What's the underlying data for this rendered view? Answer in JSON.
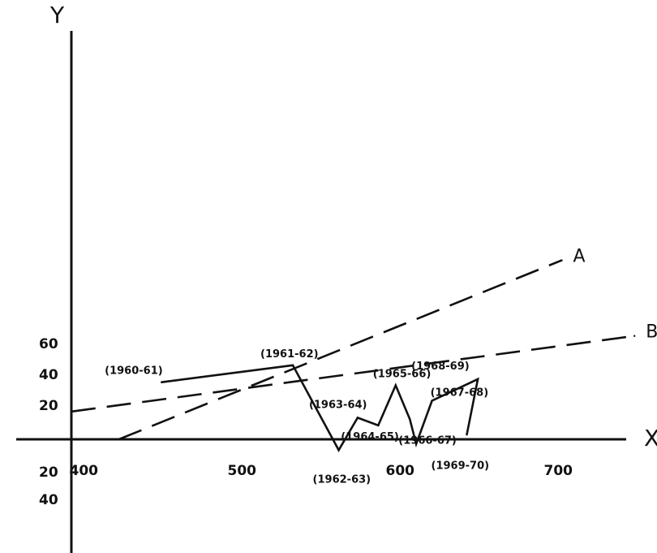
{
  "chart_data": {
    "type": "line",
    "title": "",
    "xlabel": "X",
    "ylabel": "Y",
    "xlim": [
      390,
      740
    ],
    "ylim": [
      -40,
      60
    ],
    "x_ticks": [
      {
        "value": 400,
        "label": "400"
      },
      {
        "value": 500,
        "label": "500"
      },
      {
        "value": 600,
        "label": "600"
      },
      {
        "value": 700,
        "label": "700"
      }
    ],
    "y_ticks": [
      {
        "value": 60,
        "label": "60"
      },
      {
        "value": 40,
        "label": "40"
      },
      {
        "value": 20,
        "label": "20"
      },
      {
        "value": -20,
        "label": "20"
      },
      {
        "value": -40,
        "label": "40"
      }
    ],
    "series": [
      {
        "name": "A",
        "style": "dashed",
        "points": [
          [
            420,
            0
          ],
          [
            700,
            116
          ]
        ]
      },
      {
        "name": "B",
        "style": "dashed",
        "points": [
          [
            390,
            18
          ],
          [
            746,
            67
          ]
        ]
      },
      {
        "name": "",
        "style": "solid",
        "points": [
          {
            "x": 447,
            "y": 37,
            "label": "(1960-61)"
          },
          {
            "x": 530,
            "y": 48,
            "label": "(1961-62)"
          },
          {
            "x": 559,
            "y": -7,
            "label": "(1962-63)"
          },
          {
            "x": 571,
            "y": 14,
            "label": "(1963-64)"
          },
          {
            "x": 584,
            "y": 9,
            "label": "(1964-65)"
          },
          {
            "x": 595,
            "y": 35,
            "label": "(1965-66)"
          },
          {
            "x": 604,
            "y": 13,
            "label": "(1966-67)"
          },
          {
            "x": 608,
            "y": -3,
            "label": ""
          },
          {
            "x": 618,
            "y": 25,
            "label": "(1967-68)"
          },
          {
            "x": 647,
            "y": 39,
            "label": "(1968-69)"
          },
          {
            "x": 640,
            "y": 3,
            "label": "(1969-70)"
          }
        ]
      }
    ]
  }
}
